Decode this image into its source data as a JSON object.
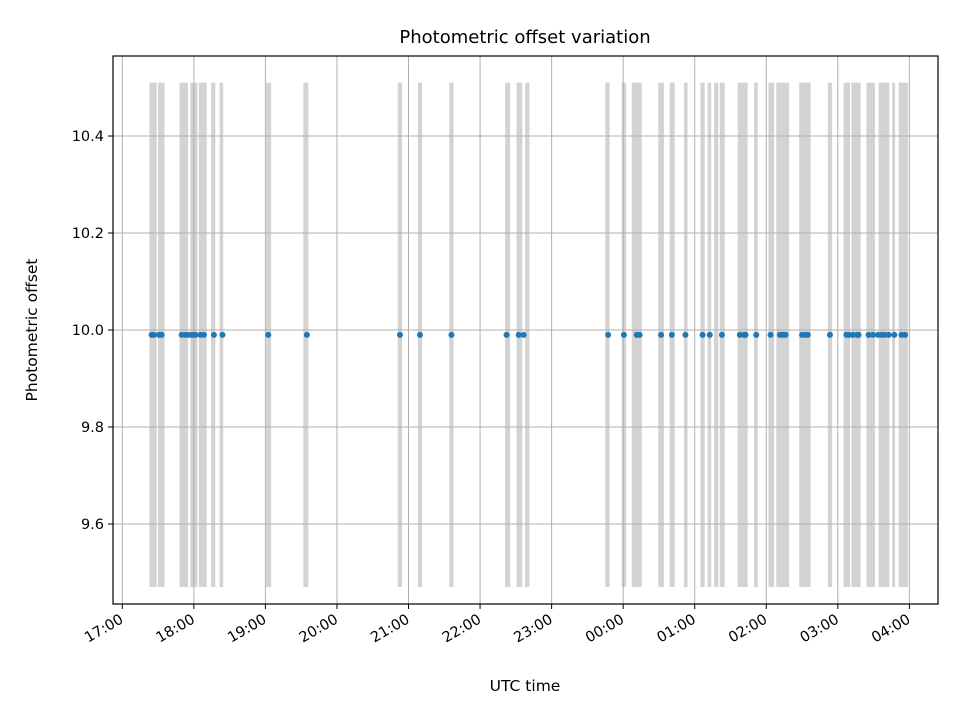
{
  "chart_data": {
    "type": "scatter",
    "title": "Photometric offset variation",
    "xlabel": "UTC time",
    "ylabel": "Photometric offset",
    "x_tick_labels": [
      "17:00",
      "18:00",
      "19:00",
      "20:00",
      "21:00",
      "22:00",
      "23:00",
      "00:00",
      "01:00",
      "02:00",
      "03:00",
      "04:00"
    ],
    "y_tick_labels": [
      "9.6",
      "9.8",
      "10.0",
      "10.2",
      "10.4"
    ],
    "x_tick_values": [
      -7.0,
      -6.0,
      -5.0,
      -4.0,
      -3.0,
      -2.0,
      -1.0,
      0.0,
      1.0,
      2.0,
      3.0,
      4.0
    ],
    "y_tick_values": [
      9.6,
      9.8,
      10.0,
      10.2,
      10.4
    ],
    "xlim_hours": [
      -7.13,
      4.4
    ],
    "ylim": [
      9.435,
      10.565
    ],
    "x_axis_note": "times in hours relative to 00:00 UTC; negative values are the previous evening",
    "grid": true,
    "band_range": [
      9.47,
      10.51
    ],
    "bands_hours": [
      [
        -6.62,
        -6.52
      ],
      [
        -6.5,
        -6.41
      ],
      [
        -6.2,
        -6.08
      ],
      [
        -6.05,
        -5.95
      ],
      [
        -5.93,
        -5.82
      ],
      [
        -5.76,
        -5.7
      ],
      [
        -5.64,
        -5.59
      ],
      [
        -4.99,
        -4.92
      ],
      [
        -4.47,
        -4.4
      ],
      [
        -3.15,
        -3.09
      ],
      [
        -2.87,
        -2.81
      ],
      [
        -2.43,
        -2.37
      ],
      [
        -1.65,
        -1.58
      ],
      [
        -1.49,
        -1.41
      ],
      [
        -1.37,
        -1.31
      ],
      [
        -0.25,
        -0.19
      ],
      [
        -0.02,
        0.04
      ],
      [
        0.12,
        0.26
      ],
      [
        0.49,
        0.57
      ],
      [
        0.65,
        0.72
      ],
      [
        0.85,
        0.9
      ],
      [
        1.08,
        1.14
      ],
      [
        1.18,
        1.23
      ],
      [
        1.27,
        1.33
      ],
      [
        1.35,
        1.42
      ],
      [
        1.6,
        1.74
      ],
      [
        1.83,
        1.88
      ],
      [
        2.03,
        2.11
      ],
      [
        2.14,
        2.32
      ],
      [
        2.46,
        2.62
      ],
      [
        2.86,
        2.92
      ],
      [
        3.08,
        3.17
      ],
      [
        3.19,
        3.32
      ],
      [
        3.4,
        3.52
      ],
      [
        3.57,
        3.72
      ],
      [
        3.76,
        3.8
      ],
      [
        3.85,
        3.98
      ]
    ],
    "series": [
      {
        "color": "#1f77b4",
        "points_hours": [
          -6.59,
          -6.56,
          -6.49,
          -6.45,
          -6.17,
          -6.12,
          -6.07,
          -6.02,
          -5.98,
          -5.91,
          -5.86,
          -5.72,
          -5.6,
          -4.96,
          -4.42,
          -3.12,
          -2.84,
          -2.4,
          -1.63,
          -1.46,
          -1.39,
          -0.21,
          0.01,
          0.19,
          0.23,
          0.53,
          0.68,
          0.87,
          1.11,
          1.21,
          1.38,
          1.63,
          1.69,
          1.71,
          1.86,
          2.06,
          2.19,
          2.23,
          2.27,
          2.5,
          2.54,
          2.58,
          2.89,
          3.12,
          3.16,
          3.21,
          3.27,
          3.29,
          3.43,
          3.49,
          3.56,
          3.61,
          3.65,
          3.71,
          3.79,
          3.89,
          3.94
        ],
        "y_value": 9.99
      }
    ],
    "band_color": "#d3d3d3"
  }
}
